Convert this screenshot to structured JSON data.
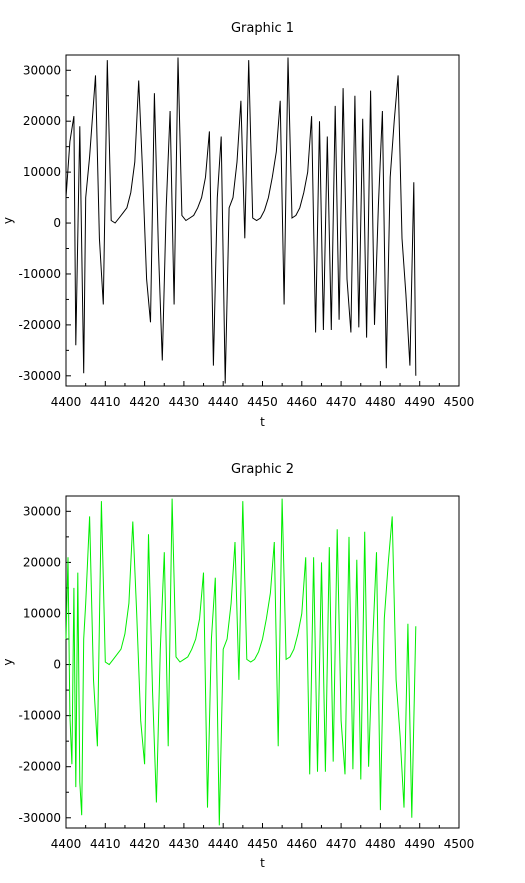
{
  "chart_data": [
    {
      "type": "line",
      "title": "Graphic 1",
      "xlabel": "t",
      "ylabel": "y",
      "xlim": [
        4400,
        4500
      ],
      "ylim": [
        -32000,
        33000
      ],
      "xticks": [
        4400,
        4410,
        4420,
        4430,
        4440,
        4450,
        4460,
        4470,
        4480,
        4490,
        4500
      ],
      "yticks": [
        -30000,
        -20000,
        -10000,
        0,
        10000,
        20000,
        30000
      ],
      "grid": false,
      "series": [
        {
          "color": "#000000",
          "x": [
            4400.0,
            4401.0,
            4402.0,
            4402.5,
            4403.5,
            4404.5,
            4405.0,
            4406.0,
            4407.5,
            4408.5,
            4409.5,
            4410.5,
            4411.5,
            4412.5,
            4413.5,
            4414.5,
            4415.5,
            4416.5,
            4417.5,
            4418.5,
            4419.5,
            4420.5,
            4421.5,
            4422.5,
            4423.5,
            4424.5,
            4425.5,
            4426.5,
            4427.5,
            4428.5,
            4429.5,
            4430.5,
            4431.5,
            4432.5,
            4433.5,
            4434.5,
            4435.5,
            4436.5,
            4437.5,
            4438.5,
            4439.5,
            4440.5,
            4441.5,
            4442.5,
            4443.5,
            4444.5,
            4445.5,
            4446.5,
            4447.5,
            4448.5,
            4449.5,
            4450.5,
            4451.5,
            4452.5,
            4453.5,
            4454.5,
            4455.5,
            4456.5,
            4457.5,
            4458.5,
            4459.5,
            4460.5,
            4461.5,
            4462.5,
            4463.5,
            4464.5,
            4465.5,
            4466.5,
            4467.5,
            4468.5,
            4469.5,
            4470.5,
            4471.5,
            4472.5,
            4473.5,
            4474.5,
            4475.5,
            4476.5,
            4477.5,
            4478.5,
            4479.5,
            4480.5,
            4481.5,
            4482.5,
            4483.5,
            4484.5,
            4485.5,
            4486.5,
            4487.5,
            4488.5,
            4489.0
          ],
          "y": [
            5000,
            16000,
            21000,
            -24000,
            19000,
            -29500,
            5000,
            13000,
            29000,
            -3000,
            -16000,
            32000,
            500,
            0,
            1000,
            2000,
            3000,
            6000,
            12000,
            28000,
            10000,
            -11000,
            -19500,
            25500,
            -5000,
            -27000,
            3000,
            22000,
            -16000,
            32500,
            1500,
            500,
            1000,
            1500,
            3000,
            5000,
            9000,
            18000,
            -28000,
            5000,
            17000,
            -31500,
            3000,
            5000,
            12000,
            24000,
            -3000,
            32000,
            1000,
            500,
            1000,
            2500,
            5000,
            9000,
            14000,
            24000,
            -16000,
            32500,
            1000,
            1500,
            3000,
            6000,
            10000,
            21000,
            -21500,
            20000,
            -21000,
            17000,
            -21000,
            23000,
            -19000,
            26500,
            -11000,
            -21500,
            25000,
            -20500,
            20500,
            -22500,
            26000,
            -20000,
            3500,
            22000,
            -28500,
            9000,
            20000,
            29000,
            -3000,
            -14000,
            -28000,
            8000,
            -30000
          ]
        }
      ]
    },
    {
      "type": "line",
      "title": "Graphic 2",
      "xlabel": "t",
      "ylabel": "y",
      "xlim": [
        4400,
        4500
      ],
      "ylim": [
        -32000,
        33000
      ],
      "xticks": [
        4400,
        4410,
        4420,
        4430,
        4440,
        4450,
        4460,
        4470,
        4480,
        4490,
        4500
      ],
      "yticks": [
        -30000,
        -20000,
        -10000,
        0,
        10000,
        20000,
        30000
      ],
      "grid": false,
      "series": [
        {
          "color": "#00ee00",
          "x": [
            4400.0,
            4400.5,
            4401.0,
            4401.5,
            4402.0,
            4402.5,
            4403.0,
            4403.5,
            4404.0,
            4404.5,
            4405.0,
            4406.0,
            4407.0,
            4408.0,
            4409.0,
            4410.0,
            4411.0,
            4412.0,
            4413.0,
            4414.0,
            4415.0,
            4416.0,
            4417.0,
            4418.0,
            4419.0,
            4420.0,
            4421.0,
            4422.0,
            4423.0,
            4424.0,
            4425.0,
            4426.0,
            4427.0,
            4428.0,
            4429.0,
            4430.0,
            4431.0,
            4432.0,
            4433.0,
            4434.0,
            4435.0,
            4436.0,
            4437.0,
            4438.0,
            4439.0,
            4440.0,
            4441.0,
            4442.0,
            4443.0,
            4444.0,
            4445.0,
            4446.0,
            4447.0,
            4448.0,
            4449.0,
            4450.0,
            4451.0,
            4452.0,
            4453.0,
            4454.0,
            4455.0,
            4456.0,
            4457.0,
            4458.0,
            4459.0,
            4460.0,
            4461.0,
            4462.0,
            4463.0,
            4464.0,
            4465.0,
            4466.0,
            4467.0,
            4468.0,
            4469.0,
            4470.0,
            4471.0,
            4472.0,
            4473.0,
            4474.0,
            4475.0,
            4476.0,
            4477.0,
            4478.0,
            4479.0,
            4480.0,
            4481.0,
            4482.0,
            4483.0,
            4484.0,
            4485.0,
            4486.0,
            4487.0,
            4488.0,
            4489.0
          ],
          "y": [
            5000,
            21000,
            -10000,
            -19500,
            15000,
            -24000,
            18000,
            -23000,
            -29500,
            5000,
            12000,
            29000,
            -3000,
            -16000,
            32000,
            500,
            0,
            1000,
            2000,
            3000,
            6000,
            12000,
            28000,
            10000,
            -11000,
            -19500,
            25500,
            -5000,
            -27000,
            3000,
            22000,
            -16000,
            32500,
            1500,
            500,
            1000,
            1500,
            3000,
            5000,
            9000,
            18000,
            -28000,
            5000,
            17000,
            -31500,
            3000,
            5000,
            12000,
            24000,
            -3000,
            32000,
            1000,
            500,
            1000,
            2500,
            5000,
            9000,
            14000,
            24000,
            -16000,
            32500,
            1000,
            1500,
            3000,
            6000,
            10000,
            21000,
            -21500,
            21000,
            -21000,
            20000,
            -21000,
            23000,
            -19000,
            26500,
            -11000,
            -21500,
            25000,
            -20500,
            20500,
            -22500,
            26000,
            -20000,
            3500,
            22000,
            -28500,
            9000,
            20000,
            29000,
            -3000,
            -14000,
            -28000,
            8000,
            -30000,
            7500
          ]
        }
      ]
    }
  ]
}
